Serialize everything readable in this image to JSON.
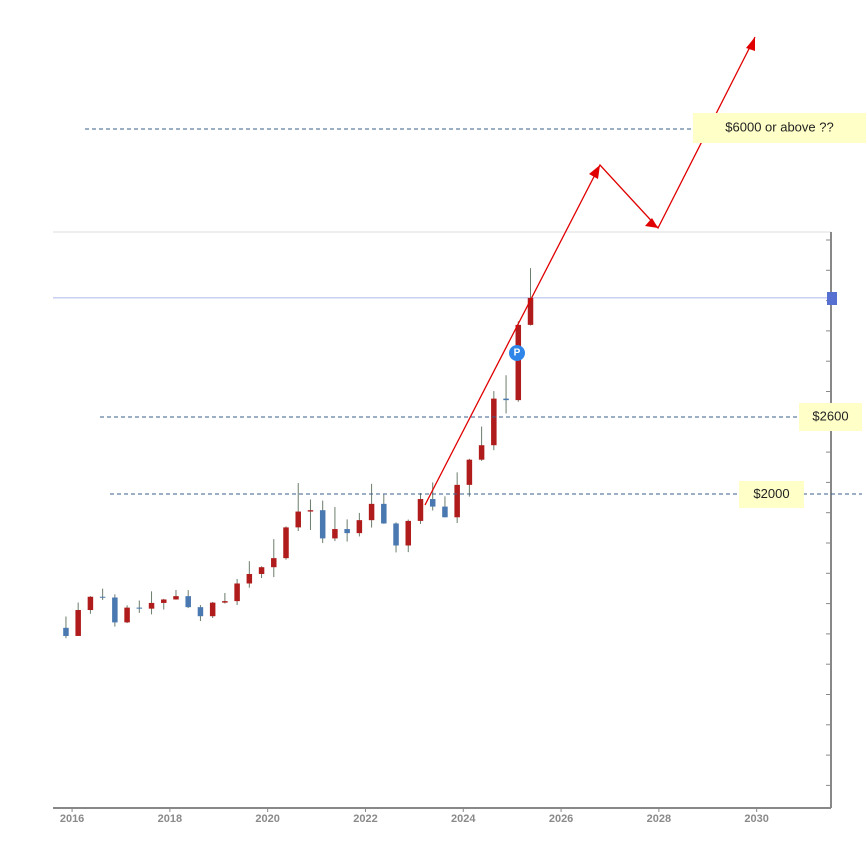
{
  "chart_data": {
    "type": "candlestick",
    "x": [
      2015.875,
      2016.125,
      2016.375,
      2016.625,
      2016.875,
      2017.125,
      2017.375,
      2017.625,
      2017.875,
      2018.125,
      2018.375,
      2018.625,
      2018.875,
      2019.125,
      2019.375,
      2019.625,
      2019.875,
      2020.125,
      2020.375,
      2020.625,
      2020.875,
      2021.125,
      2021.375,
      2021.625,
      2021.875,
      2022.125,
      2022.375,
      2022.625,
      2022.875,
      2023.125,
      2023.375,
      2023.625,
      2023.875,
      2024.125,
      2024.375,
      2024.625,
      2024.875,
      2025.125,
      2025.375
    ],
    "open": [
      1115,
      1061,
      1233,
      1321,
      1316,
      1151,
      1249,
      1242,
      1280,
      1303,
      1325,
      1252,
      1192,
      1282,
      1292,
      1409,
      1472,
      1517,
      1577,
      1781,
      1886,
      1895,
      1708,
      1770,
      1743,
      1829,
      1937,
      1807,
      1661,
      1824,
      1969,
      1919,
      1848,
      2063,
      2230,
      2326,
      2635,
      2625,
      3124
    ],
    "high": [
      1190,
      1283,
      1325,
      1375,
      1337,
      1264,
      1296,
      1357,
      1307,
      1366,
      1365,
      1266,
      1287,
      1346,
      1439,
      1557,
      1523,
      1703,
      1788,
      2075,
      1966,
      1959,
      1916,
      1834,
      1877,
      2070,
      1998,
      1814,
      1833,
      2009,
      2079,
      1987,
      2146,
      2236,
      2450,
      2685,
      2790,
      3148,
      3500
    ],
    "low": [
      1046,
      1062,
      1208,
      1300,
      1123,
      1146,
      1214,
      1204,
      1236,
      1302,
      1246,
      1160,
      1180,
      1276,
      1266,
      1381,
      1445,
      1451,
      1567,
      1757,
      1764,
      1677,
      1690,
      1687,
      1721,
      1780,
      1805,
      1615,
      1617,
      1804,
      1893,
      1848,
      1810,
      1985,
      2222,
      2293,
      2537,
      2614,
      3120
    ],
    "close": [
      1061,
      1233,
      1321,
      1316,
      1151,
      1249,
      1242,
      1280,
      1303,
      1325,
      1252,
      1192,
      1282,
      1292,
      1409,
      1472,
      1517,
      1577,
      1781,
      1886,
      1895,
      1708,
      1770,
      1743,
      1829,
      1937,
      1807,
      1661,
      1824,
      1969,
      1919,
      1848,
      2063,
      2230,
      2326,
      2635,
      2625,
      3124,
      3303
    ],
    "up_color": "#b01c1c",
    "down_color": "#4a78b0",
    "xlim": [
      2015.61,
      2031.52
    ],
    "xticks": [
      2016,
      2018,
      2020,
      2022,
      2024,
      2026,
      2028,
      2030
    ],
    "ylim": [
      -80,
      3740
    ],
    "annotations": [
      "$6000 or above ??",
      "$2600",
      "$2000"
    ]
  }
}
